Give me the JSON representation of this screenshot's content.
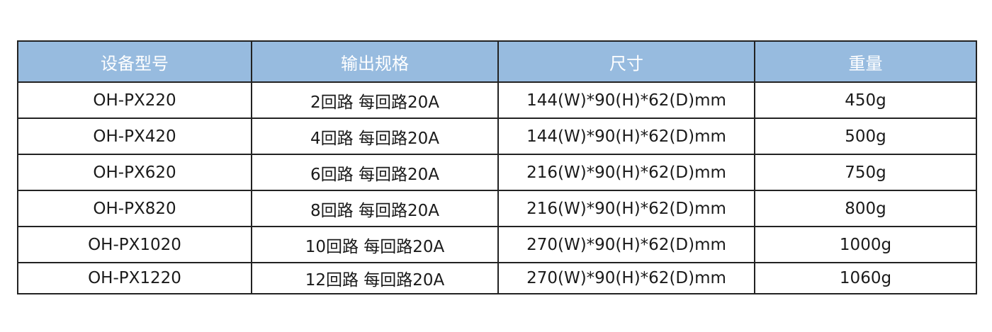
{
  "colors": {
    "header_bg": "#97bbdf",
    "header_text": "#ffffff",
    "border": "#222222"
  },
  "table": {
    "headers": [
      "设备型号",
      "输出规格",
      "尺寸",
      "重量"
    ],
    "rows": [
      [
        "OH-PX220",
        "2回路 每回路20A",
        "144(W)*90(H)*62(D)mm",
        "450g"
      ],
      [
        "OH-PX420",
        "4回路 每回路20A",
        "144(W)*90(H)*62(D)mm",
        "500g"
      ],
      [
        "OH-PX620",
        "6回路 每回路20A",
        "216(W)*90(H)*62(D)mm",
        "750g"
      ],
      [
        "OH-PX820",
        "8回路 每回路20A",
        "216(W)*90(H)*62(D)mm",
        "800g"
      ],
      [
        "OH-PX1020",
        "10回路 每回路20A",
        "270(W)*90(H)*62(D)mm",
        "1000g"
      ],
      [
        "OH-PX1220",
        "12回路 每回路20A",
        "270(W)*90(H)*62(D)mm",
        "1060g"
      ]
    ]
  }
}
